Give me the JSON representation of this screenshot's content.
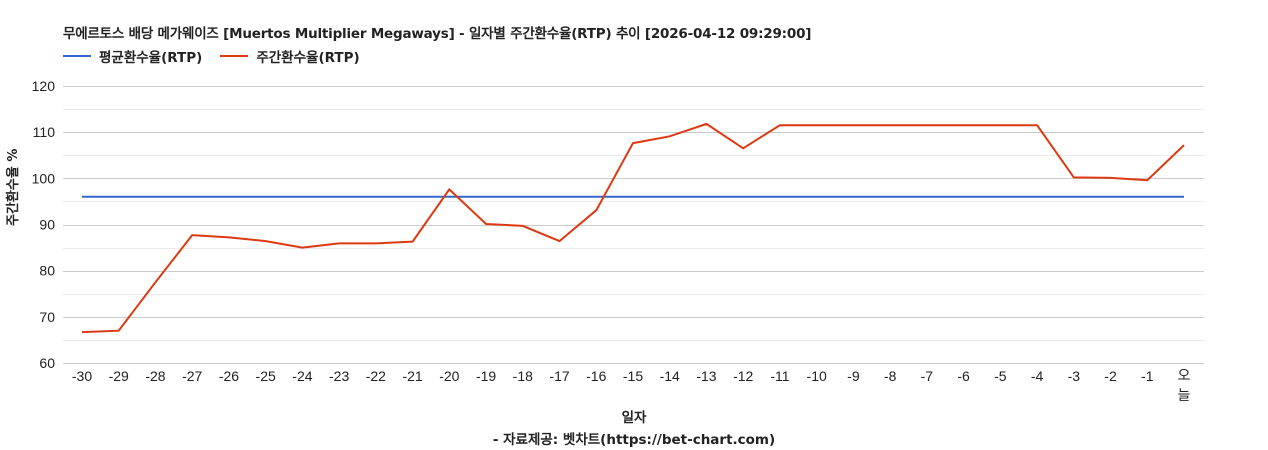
{
  "header": {
    "title": "무에르토스 배당  메가웨이즈 [Muertos Multiplier Megaways] - 일자별 주간환수율(RTP) 추이 [2026-04-12 09:29:00]"
  },
  "legend": {
    "items": [
      {
        "label": "평균환수율(RTP)",
        "color": "#3366cc"
      },
      {
        "label": "주간환수율(RTP)",
        "color": "#dc3912"
      }
    ]
  },
  "axes": {
    "ylabel": "주간환수율 %",
    "xlabel": "일자"
  },
  "footer": {
    "source": "- 자료제공: 벳차트(https://bet-chart.com)"
  },
  "chart_data": {
    "type": "line",
    "title": "무에르토스 배당  메가웨이즈 [Muertos Multiplier Megaways] - 일자별 주간환수율(RTP) 추이 [2026-04-12 09:29:00]",
    "xlabel": "일자",
    "ylabel": "주간환수율 %",
    "ylim": [
      60,
      120
    ],
    "yticks": [
      60,
      70,
      80,
      90,
      100,
      110,
      120
    ],
    "grid": true,
    "legend_position": "top-left",
    "categories": [
      "-30",
      "-29",
      "-28",
      "-27",
      "-26",
      "-25",
      "-24",
      "-23",
      "-22",
      "-21",
      "-20",
      "-19",
      "-18",
      "-17",
      "-16",
      "-15",
      "-14",
      "-13",
      "-12",
      "-11",
      "-10",
      "-9",
      "-8",
      "-7",
      "-6",
      "-5",
      "-4",
      "-3",
      "-2",
      "-1",
      "오늘"
    ],
    "series": [
      {
        "name": "평균환수율(RTP)",
        "color": "#3366cc",
        "values": [
          96.0,
          96.0,
          96.0,
          96.0,
          96.0,
          96.0,
          96.0,
          96.0,
          96.0,
          96.0,
          96.0,
          96.0,
          96.0,
          96.0,
          96.0,
          96.0,
          96.0,
          96.0,
          96.0,
          96.0,
          96.0,
          96.0,
          96.0,
          96.0,
          96.0,
          96.0,
          96.0,
          96.0,
          96.0,
          96.0,
          96.0
        ]
      },
      {
        "name": "주간환수율(RTP)",
        "color": "#dc3912",
        "values": [
          66.7,
          67.0,
          77.5,
          87.7,
          87.2,
          86.4,
          85.0,
          85.9,
          85.9,
          86.3,
          97.6,
          90.1,
          89.7,
          86.4,
          93.1,
          107.6,
          109.1,
          111.8,
          106.5,
          111.5,
          111.5,
          111.5,
          111.5,
          111.5,
          111.5,
          111.5,
          111.5,
          100.2,
          100.1,
          99.6,
          107.2
        ]
      }
    ],
    "source": "- 자료제공: 벳차트(https://bet-chart.com)"
  }
}
